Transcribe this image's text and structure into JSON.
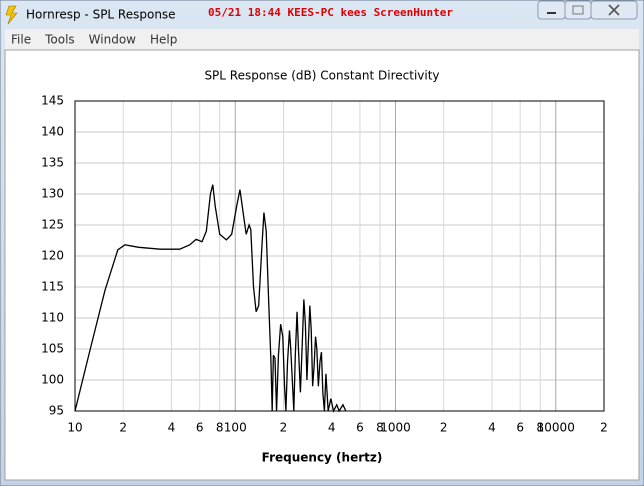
{
  "window": {
    "title": "Hornresp - SPL Response",
    "watermark": "05/21  18:44  KEES-PC  kees  ScreenHunter"
  },
  "menu": [
    "File",
    "Tools",
    "Window",
    "Help"
  ],
  "chart_data": {
    "type": "line",
    "title": "SPL Response (dB)   Constant Directivity",
    "x_label": "Frequency (hertz)",
    "log_x": true,
    "grid": true,
    "color": "#000000",
    "xlim": [
      10,
      20000
    ],
    "ylim": [
      95,
      145
    ],
    "xticks": [
      10,
      {
        "value": 20,
        "label": "2"
      },
      {
        "value": 40,
        "label": "4"
      },
      {
        "value": 60,
        "label": "6"
      },
      {
        "value": 80,
        "label": "8"
      },
      100,
      {
        "value": 200,
        "label": "2"
      },
      {
        "value": 400,
        "label": "4"
      },
      {
        "value": 600,
        "label": "6"
      },
      {
        "value": 800,
        "label": "8"
      },
      1000,
      {
        "value": 2000,
        "label": "2"
      },
      {
        "value": 4000,
        "label": "4"
      },
      {
        "value": 6000,
        "label": "6"
      },
      {
        "value": 8000,
        "label": "8"
      },
      10000,
      {
        "value": 20000,
        "label": "2"
      }
    ],
    "yticks": [
      95,
      100,
      105,
      110,
      115,
      120,
      125,
      130,
      135,
      140,
      145
    ],
    "x": [
      10,
      12.4,
      15.4,
      18.5,
      20.5,
      25,
      34,
      45,
      52,
      57,
      62,
      66,
      70,
      72.4,
      75,
      80,
      88,
      95,
      102,
      107,
      112,
      117,
      122,
      125,
      130,
      135,
      140,
      147,
      151,
      156,
      162,
      167,
      170,
      173,
      177,
      181,
      186,
      192,
      198,
      203,
      207,
      212,
      218,
      222,
      228,
      232,
      237,
      243,
      248,
      255,
      262,
      268,
      274,
      280,
      287,
      292,
      298,
      304,
      310,
      317,
      323,
      330,
      338,
      345,
      352,
      360,
      368,
      380,
      395,
      410,
      430,
      445,
      470,
      490
    ],
    "values": [
      95,
      104.8,
      114.5,
      121,
      121.8,
      121.4,
      121.1,
      121.1,
      121.8,
      122.7,
      122.3,
      124,
      130,
      131.5,
      128,
      123.5,
      122.6,
      123.5,
      128,
      130.7,
      127,
      123.5,
      125,
      124.3,
      115,
      111,
      112,
      122,
      127,
      124,
      112,
      103,
      95,
      104,
      103.5,
      95,
      104,
      109,
      107,
      99,
      95,
      103,
      108,
      105,
      99,
      95,
      104,
      111,
      105,
      98,
      106,
      113,
      109,
      100,
      107,
      112,
      108,
      99,
      102,
      107,
      105,
      99,
      103,
      104.5,
      98,
      95,
      101,
      95,
      97,
      95,
      96,
      95,
      96,
      95
    ]
  }
}
